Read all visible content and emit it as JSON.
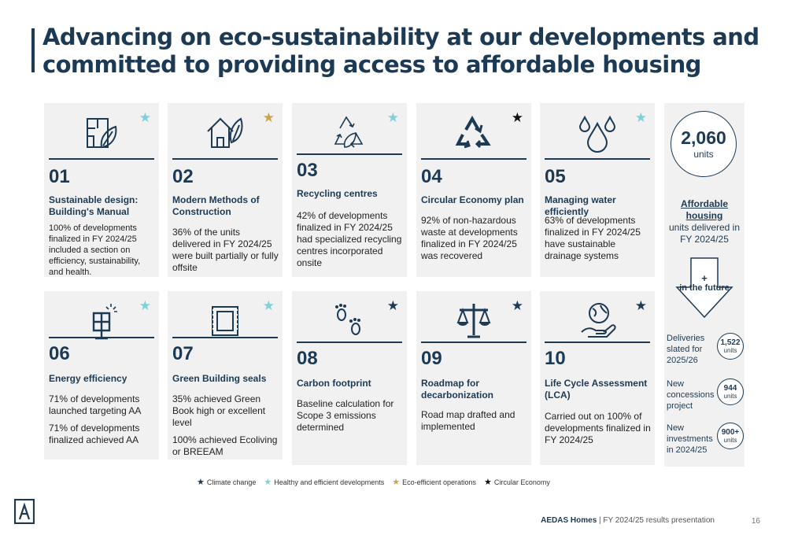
{
  "title": "Advancing on eco-sustainability at our developments and committed to providing access to affordable housing",
  "colors": {
    "navy": "#1d3a55",
    "light_blue": "#7fd0d9",
    "gold": "#c9a64a",
    "black": "#111111"
  },
  "cards": [
    {
      "num": "01",
      "title": "Sustainable design: Building's Manual",
      "body": [
        "100% of developments finalized in FY 2024/25 included a section on efficiency, sustainability, and health."
      ],
      "icon": "building-leaf-icon",
      "star": "light_blue"
    },
    {
      "num": "02",
      "title": "Modern Methods of Construction",
      "body": [
        "36% of the units delivered in FY 2024/25 were built partially or fully offsite"
      ],
      "icon": "house-leaf-icon",
      "star": "gold"
    },
    {
      "num": "03",
      "title": "Recycling centres",
      "body": [
        "42% of developments finalized in FY 2024/25 had specialized recycling centres incorporated onsite"
      ],
      "icon": "recycle-leaf-icon",
      "star": "light_blue"
    },
    {
      "num": "04",
      "title": "Circular Economy plan",
      "body": [
        "92% of non-hazardous waste at developments finalized in FY 2024/25 was recovered"
      ],
      "icon": "recycle-icon",
      "star": "black"
    },
    {
      "num": "05",
      "title": "Managing water efficiently",
      "body": [
        "63% of developments finalized in FY 2024/25 have sustainable drainage systems"
      ],
      "icon": "water-drops-icon",
      "star": "light_blue"
    },
    {
      "num": "06",
      "title": "Energy efficiency",
      "body": [
        "71% of developments launched targeting AA",
        "71% of developments finalized achieved AA"
      ],
      "icon": "solar-panel-icon",
      "star": "light_blue"
    },
    {
      "num": "07",
      "title": "Green Building seals",
      "body": [
        "35% achieved Green Book high or excellent level",
        "100% achieved Ecoliving or BREEAM"
      ],
      "icon": "seal-stamp-icon",
      "star": "light_blue"
    },
    {
      "num": "08",
      "title": "Carbon footprint",
      "body": [
        "Baseline calculation for Scope 3 emissions determined"
      ],
      "icon": "footprints-icon",
      "star": "navy"
    },
    {
      "num": "09",
      "title": "Roadmap for decarbonization",
      "body": [
        "Road map drafted and implemented"
      ],
      "icon": "scales-icon",
      "star": "navy"
    },
    {
      "num": "10",
      "title": "Life Cycle Assessment (LCA)",
      "body": [
        "Carried out on 100% of developments finalized in FY 2024/25"
      ],
      "icon": "globe-hand-icon",
      "star": "navy"
    }
  ],
  "side": {
    "big_number": "2,060",
    "big_units": "units",
    "aff_title": "Affordable housing",
    "aff_sub": "units delivered in FY 2024/25",
    "arrow_plus": "+",
    "arrow_text": "in the future",
    "rows": [
      {
        "label": "Deliveries slated for 2025/26",
        "value": "1,522",
        "unit": "units"
      },
      {
        "label": "New concessions project",
        "value": "944",
        "unit": "units"
      },
      {
        "label": "New investments in 2024/25",
        "value": "900+",
        "unit": "units"
      }
    ]
  },
  "legend": [
    {
      "label": "Climate change",
      "color": "navy"
    },
    {
      "label": "Healthy and efficient developments",
      "color": "light_blue"
    },
    {
      "label": "Eco-efficient operations",
      "color": "gold"
    },
    {
      "label": "Circular Economy",
      "color": "black"
    }
  ],
  "footer": {
    "brand": "AEDAS Homes",
    "text": " | FY 2024/25 results presentation",
    "page": "16"
  },
  "logo": "aedas-logo-icon"
}
